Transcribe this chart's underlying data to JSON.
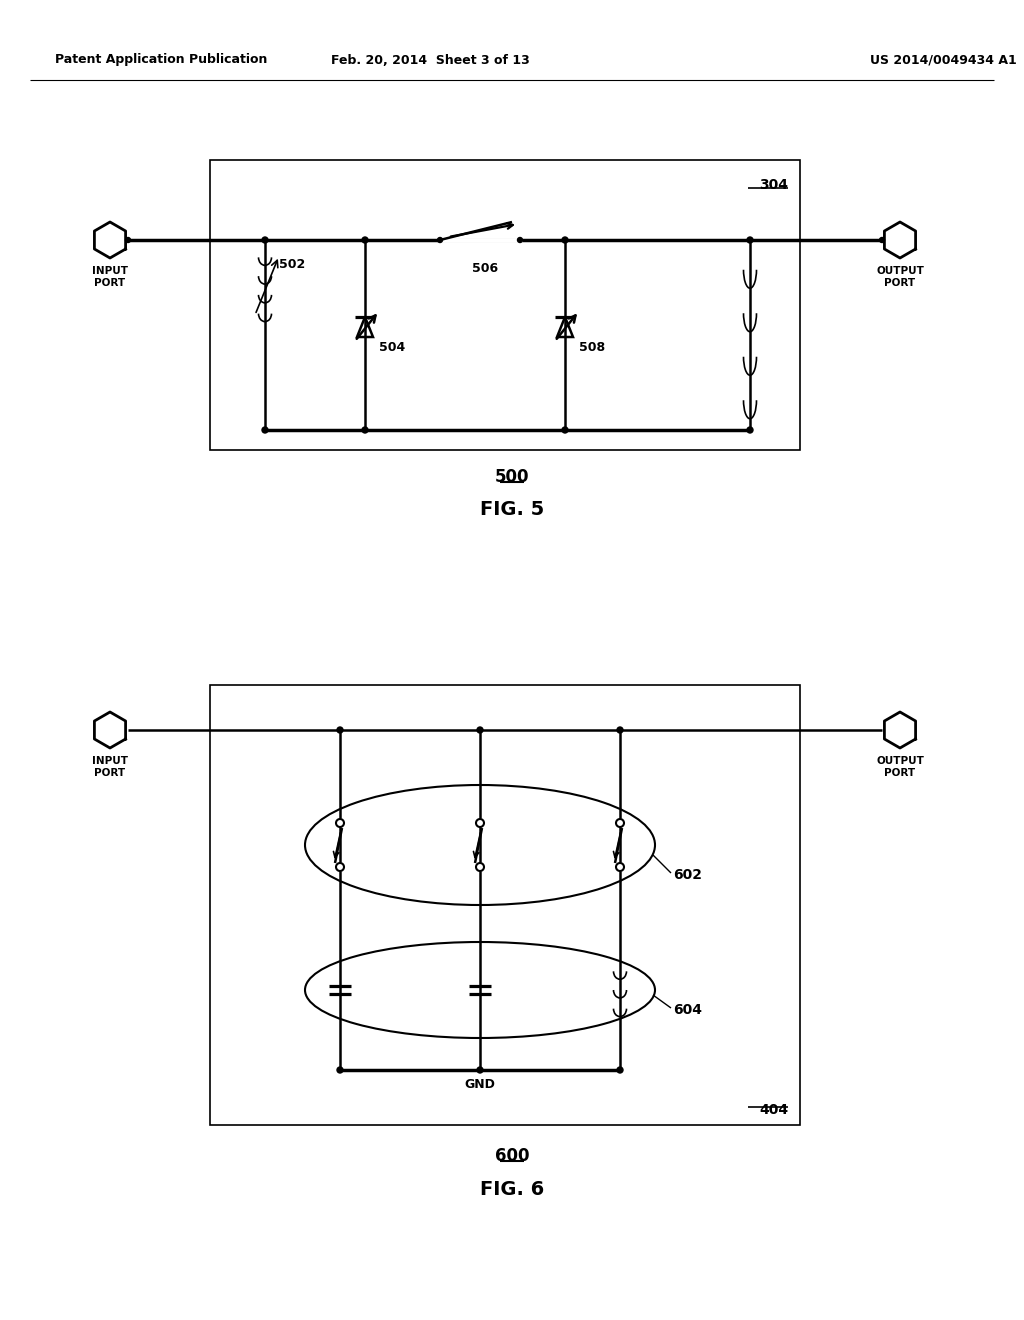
{
  "bg_color": "#ffffff",
  "header_left": "Patent Application Publication",
  "header_center": "Feb. 20, 2014  Sheet 3 of 13",
  "header_right": "US 2014/0049434 A1",
  "fig5_label": "500",
  "fig5_title": "FIG. 5",
  "fig6_label": "600",
  "fig6_title": "FIG. 6",
  "fig5_ref": "304",
  "fig6_ref": "404",
  "label_502": "502",
  "label_504": "504",
  "label_506": "506",
  "label_508": "508",
  "label_602": "602",
  "label_604": "604",
  "label_gnd": "GND"
}
